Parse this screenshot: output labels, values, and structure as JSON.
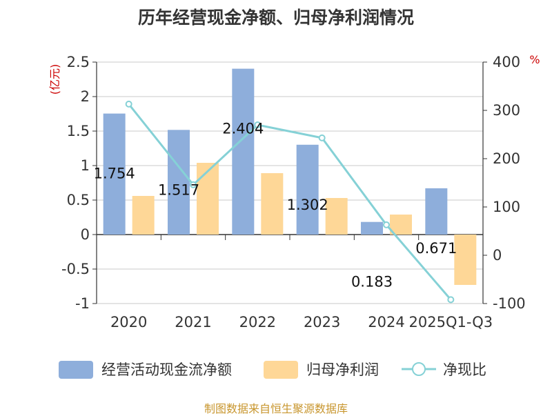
{
  "chart_data": {
    "type": "bar",
    "title": "历年经营现金净额、归母净利润情况",
    "categories": [
      "2020",
      "2021",
      "2022",
      "2023",
      "2024",
      "2025Q1-Q3"
    ],
    "series": [
      {
        "name": "经营活动现金流净额",
        "type": "bar",
        "axis": "left",
        "color": "#8eaedb",
        "values": [
          1.754,
          1.517,
          2.404,
          1.302,
          0.183,
          0.671
        ],
        "labels": [
          "1.754",
          "1.517",
          "2.404",
          "1.302",
          "0.183",
          "0.671"
        ]
      },
      {
        "name": "归母净利润",
        "type": "bar",
        "axis": "left",
        "color": "#fed797",
        "values": [
          0.56,
          1.04,
          0.89,
          0.53,
          0.29,
          -0.73
        ]
      },
      {
        "name": "净现比",
        "type": "line",
        "axis": "right",
        "color": "#85d1d6",
        "values": [
          313,
          146,
          270,
          243,
          63,
          -92
        ]
      }
    ],
    "yleft": {
      "label": "(亿元)",
      "min": -1,
      "max": 2.5,
      "ticks": [
        -1,
        -0.5,
        0,
        0.5,
        1,
        1.5,
        2,
        2.5
      ],
      "tick_labels": [
        "-1",
        "-0.5",
        "0",
        "0.5",
        "1",
        "1.5",
        "2",
        "2.5"
      ]
    },
    "yright": {
      "label": "%",
      "min": -100,
      "max": 400,
      "ticks": [
        -100,
        0,
        100,
        200,
        300,
        400
      ],
      "tick_labels": [
        "-100",
        "0",
        "100",
        "200",
        "300",
        "400"
      ]
    },
    "grid": true,
    "legend_position": "bottom"
  },
  "source": "制图数据来自恒生聚源数据库"
}
